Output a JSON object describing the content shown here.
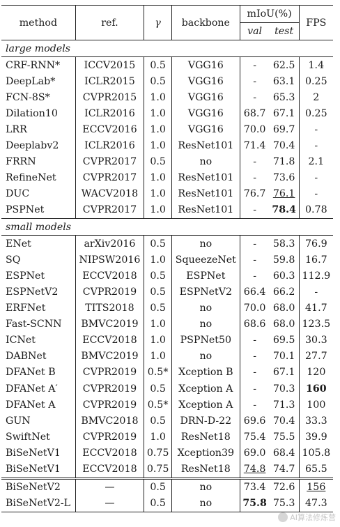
{
  "header": {
    "method": "method",
    "ref": "ref.",
    "gamma": "γ",
    "backbone": "backbone",
    "miou": "mIoU(%)",
    "val": "val",
    "test": "test",
    "fps": "FPS"
  },
  "sections": [
    {
      "title": "large models",
      "rows": [
        {
          "method": "CRF-RNN*",
          "ref": "ICCV2015",
          "gamma": "0.5",
          "backbone": "VGG16",
          "val": "-",
          "test": "62.5",
          "fps": "1.4"
        },
        {
          "method": "DeepLab*",
          "ref": "ICLR2015",
          "gamma": "0.5",
          "backbone": "VGG16",
          "val": "-",
          "test": "63.1",
          "fps": "0.25"
        },
        {
          "method": "FCN-8S*",
          "ref": "CVPR2015",
          "gamma": "1.0",
          "backbone": "VGG16",
          "val": "-",
          "test": "65.3",
          "fps": "2"
        },
        {
          "method": "Dilation10",
          "ref": "ICLR2016",
          "gamma": "1.0",
          "backbone": "VGG16",
          "val": "68.7",
          "test": "67.1",
          "fps": "0.25"
        },
        {
          "method": "LRR",
          "ref": "ECCV2016",
          "gamma": "1.0",
          "backbone": "VGG16",
          "val": "70.0",
          "test": "69.7",
          "fps": "-"
        },
        {
          "method": "Deeplabv2",
          "ref": "ICLR2016",
          "gamma": "1.0",
          "backbone": "ResNet101",
          "val": "71.4",
          "test": "70.4",
          "fps": "-"
        },
        {
          "method": "FRRN",
          "ref": "CVPR2017",
          "gamma": "0.5",
          "backbone": "no",
          "val": "-",
          "test": "71.8",
          "fps": "2.1"
        },
        {
          "method": "RefineNet",
          "ref": "CVPR2017",
          "gamma": "1.0",
          "backbone": "ResNet101",
          "val": "-",
          "test": "73.6",
          "fps": "-"
        },
        {
          "method": "DUC",
          "ref": "WACV2018",
          "gamma": "1.0",
          "backbone": "ResNet101",
          "val": "76.7",
          "test": "76.1",
          "fps": "-",
          "test_underline": true
        },
        {
          "method": "PSPNet",
          "ref": "CVPR2017",
          "gamma": "1.0",
          "backbone": "ResNet101",
          "val": "-",
          "test": "78.4",
          "fps": "0.78",
          "test_bold": true
        }
      ]
    },
    {
      "title": "small models",
      "rows": [
        {
          "method": "ENet",
          "ref": "arXiv2016",
          "gamma": "0.5",
          "backbone": "no",
          "val": "-",
          "test": "58.3",
          "fps": "76.9"
        },
        {
          "method": "SQ",
          "ref": "NIPSW2016",
          "gamma": "1.0",
          "backbone": "SqueezeNet",
          "val": "-",
          "test": "59.8",
          "fps": "16.7"
        },
        {
          "method": "ESPNet",
          "ref": "ECCV2018",
          "gamma": "0.5",
          "backbone": "ESPNet",
          "val": "-",
          "test": "60.3",
          "fps": "112.9"
        },
        {
          "method": "ESPNetV2",
          "ref": "CVPR2019",
          "gamma": "0.5",
          "backbone": "ESPNetV2",
          "val": "66.4",
          "test": "66.2",
          "fps": "-"
        },
        {
          "method": "ERFNet",
          "ref": "TITS2018",
          "gamma": "0.5",
          "backbone": "no",
          "val": "70.0",
          "test": "68.0",
          "fps": "41.7"
        },
        {
          "method": "Fast-SCNN",
          "ref": "BMVC2019",
          "gamma": "1.0",
          "backbone": "no",
          "val": "68.6",
          "test": "68.0",
          "fps": "123.5"
        },
        {
          "method": "ICNet",
          "ref": "ECCV2018",
          "gamma": "1.0",
          "backbone": "PSPNet50",
          "val": "-",
          "test": "69.5",
          "fps": "30.3"
        },
        {
          "method": "DABNet",
          "ref": "BMVC2019",
          "gamma": "1.0",
          "backbone": "no",
          "val": "-",
          "test": "70.1",
          "fps": "27.7"
        },
        {
          "method": "DFANet B",
          "ref": "CVPR2019",
          "gamma": "0.5*",
          "backbone": "Xception B",
          "val": "-",
          "test": "67.1",
          "fps": "120"
        },
        {
          "method": "DFANet A′",
          "ref": "CVPR2019",
          "gamma": "0.5",
          "backbone": "Xception A",
          "val": "-",
          "test": "70.3",
          "fps": "160",
          "fps_bold": true
        },
        {
          "method": "DFANet A",
          "ref": "CVPR2019",
          "gamma": "0.5*",
          "backbone": "Xception A",
          "val": "-",
          "test": "71.3",
          "fps": "100"
        },
        {
          "method": "GUN",
          "ref": "BMVC2018",
          "gamma": "0.5",
          "backbone": "DRN-D-22",
          "val": "69.6",
          "test": "70.4",
          "fps": "33.3"
        },
        {
          "method": "SwiftNet",
          "ref": "CVPR2019",
          "gamma": "1.0",
          "backbone": "ResNet18",
          "val": "75.4",
          "test": "75.5",
          "fps": "39.9"
        },
        {
          "method": "BiSeNetV1",
          "ref": "ECCV2018",
          "gamma": "0.75",
          "backbone": "Xception39",
          "val": "69.0",
          "test": "68.4",
          "fps": "105.8"
        },
        {
          "method": "BiSeNetV1",
          "ref": "ECCV2018",
          "gamma": "0.75",
          "backbone": "ResNet18",
          "val": "74.8",
          "test": "74.7",
          "fps": "65.5",
          "val_underline": true
        }
      ]
    }
  ],
  "ours": [
    {
      "method": "BiSeNetV2",
      "ref": "—",
      "gamma": "0.5",
      "backbone": "no",
      "val": "73.4",
      "test": "72.6",
      "fps": "156",
      "fps_underline": true
    },
    {
      "method": "BiSeNetV2-L",
      "ref": "—",
      "gamma": "0.5",
      "backbone": "no",
      "val": "75.8",
      "test": "75.3",
      "fps": "47.3",
      "val_bold": true
    }
  ],
  "watermark": "AI算法修炼营"
}
